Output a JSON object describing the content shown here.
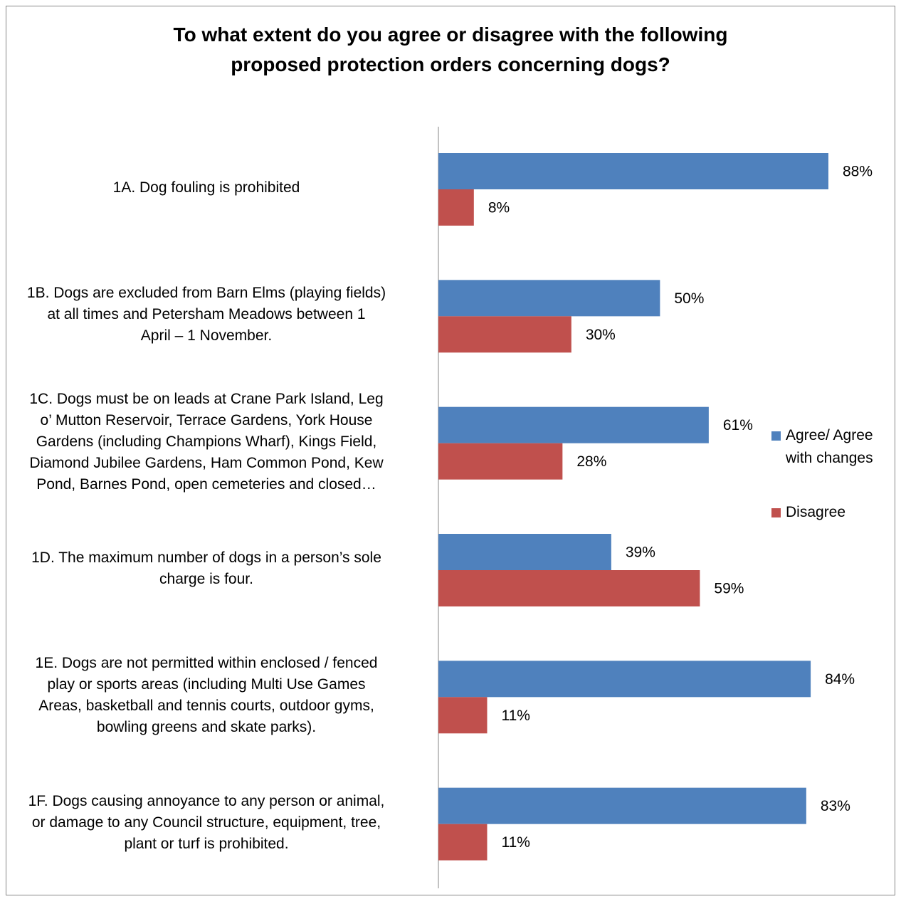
{
  "chart_data": {
    "type": "bar",
    "orientation": "horizontal",
    "title": "To what extent do you agree or disagree with the following\nproposed protection orders concerning dogs?",
    "categories": [
      "1A. Dog fouling is prohibited",
      "1B. Dogs are excluded from Barn Elms (playing fields)\nat all times and Petersham Meadows between 1\nApril – 1 November.",
      "1C. Dogs must be on leads at Crane Park Island, Leg\no’ Mutton Reservoir, Terrace Gardens, York House\nGardens (including Champions Wharf), Kings Field,\nDiamond Jubilee Gardens, Ham Common Pond, Kew\nPond, Barnes Pond, open cemeteries and closed…",
      "1D. The maximum number of dogs in a person’s sole\ncharge is four.",
      "1E. Dogs are not permitted within enclosed / fenced\nplay or sports areas (including Multi Use Games\nAreas, basketball and tennis courts, outdoor gyms,\nbowling greens and skate parks).",
      "1F. Dogs causing annoyance to any person or animal,\nor damage to any Council structure, equipment, tree,\nplant or turf is prohibited."
    ],
    "series": [
      {
        "name": "Agree/ Agree with changes",
        "color": "#4f81bd",
        "values": [
          88,
          50,
          61,
          39,
          84,
          83
        ],
        "labels": [
          "88%",
          "50%",
          "61%",
          "39%",
          "84%",
          "83%"
        ]
      },
      {
        "name": "Disagree",
        "color": "#c0504d",
        "values": [
          8,
          30,
          28,
          59,
          11,
          11
        ],
        "labels": [
          "8%",
          "30%",
          "28%",
          "59%",
          "11%",
          "11%"
        ]
      }
    ],
    "xlim": [
      0,
      100
    ],
    "grid": false,
    "legend_position": "right"
  },
  "legend": {
    "agree_label": "Agree/ Agree\nwith changes",
    "disagree_label": "Disagree"
  }
}
